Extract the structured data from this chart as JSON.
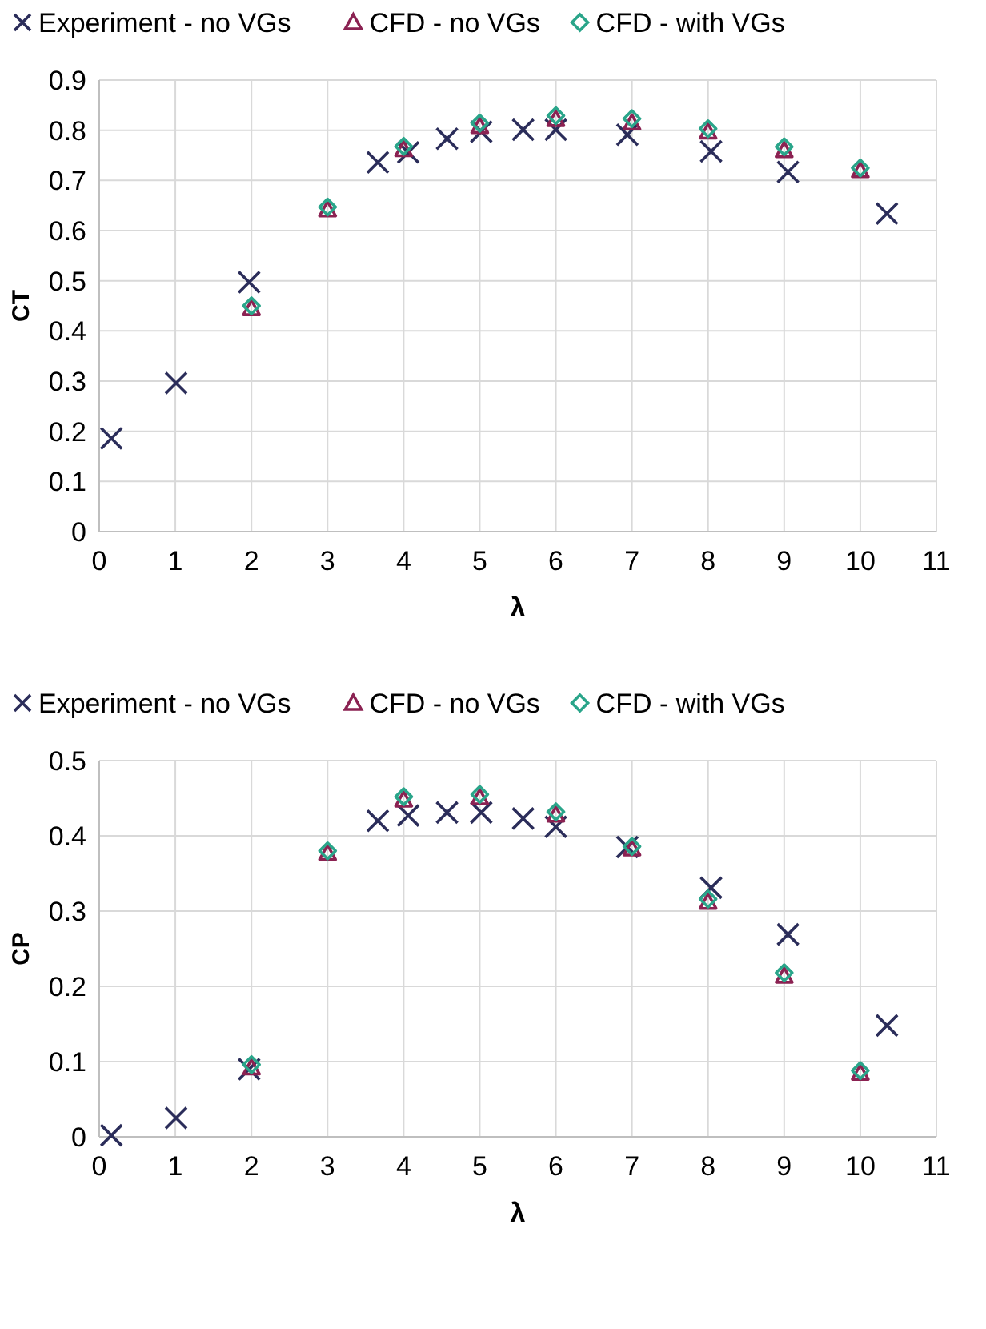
{
  "chart_data": [
    {
      "type": "scatter",
      "xlabel": "λ",
      "ylabel": "CT",
      "xlim": [
        0,
        11
      ],
      "xticks": [
        0,
        1,
        2,
        3,
        4,
        5,
        6,
        7,
        8,
        9,
        10,
        11
      ],
      "ylim": [
        0,
        0.9
      ],
      "yticks": [
        0,
        0.1,
        0.2,
        0.3,
        0.4,
        0.5,
        0.6,
        0.7,
        0.8,
        0.9
      ],
      "grid": true,
      "legend": "top",
      "series": [
        {
          "name": "Experiment - no VGs",
          "color": "#2b2d5a",
          "marker": "cross",
          "x": [
            0.16,
            1.01,
            1.97,
            3.66,
            4.06,
            4.57,
            5.02,
            5.57,
            6.0,
            6.94,
            8.04,
            9.05,
            10.35
          ],
          "values": [
            0.186,
            0.296,
            0.497,
            0.736,
            0.756,
            0.783,
            0.797,
            0.801,
            0.801,
            0.791,
            0.758,
            0.717,
            0.634
          ]
        },
        {
          "name": "CFD - no VGs",
          "color": "#8b2252",
          "marker": "triangle",
          "x": [
            2,
            3,
            4,
            5,
            6,
            7,
            8,
            9,
            10
          ],
          "values": [
            0.445,
            0.642,
            0.762,
            0.808,
            0.822,
            0.815,
            0.797,
            0.76,
            0.72
          ]
        },
        {
          "name": "CFD - with VGs",
          "color": "#2aa58a",
          "marker": "diamond",
          "x": [
            2,
            3,
            4,
            5,
            6,
            7,
            8,
            9,
            10
          ],
          "values": [
            0.45,
            0.647,
            0.768,
            0.814,
            0.829,
            0.823,
            0.803,
            0.767,
            0.725
          ]
        }
      ]
    },
    {
      "type": "scatter",
      "xlabel": "λ",
      "ylabel": "CP",
      "xlim": [
        0,
        11
      ],
      "xticks": [
        0,
        1,
        2,
        3,
        4,
        5,
        6,
        7,
        8,
        9,
        10,
        11
      ],
      "ylim": [
        0,
        0.5
      ],
      "yticks": [
        0,
        0.1,
        0.2,
        0.3,
        0.4,
        0.5
      ],
      "grid": true,
      "legend": "top",
      "series": [
        {
          "name": "Experiment - no VGs",
          "color": "#2b2d5a",
          "marker": "cross",
          "x": [
            0.16,
            1.01,
            1.97,
            3.66,
            4.06,
            4.57,
            5.02,
            5.57,
            6.0,
            6.94,
            8.04,
            9.05,
            10.35
          ],
          "values": [
            0.002,
            0.025,
            0.09,
            0.42,
            0.427,
            0.431,
            0.431,
            0.423,
            0.412,
            0.385,
            0.331,
            0.269,
            0.148
          ]
        },
        {
          "name": "CFD - no VGs",
          "color": "#8b2252",
          "marker": "triangle",
          "x": [
            2,
            3,
            4,
            5,
            6,
            7,
            8,
            9,
            10
          ],
          "values": [
            0.092,
            0.377,
            0.448,
            0.451,
            0.428,
            0.383,
            0.312,
            0.214,
            0.085
          ]
        },
        {
          "name": "CFD - with VGs",
          "color": "#2aa58a",
          "marker": "diamond",
          "x": [
            2,
            3,
            4,
            5,
            6,
            7,
            8,
            9,
            10
          ],
          "values": [
            0.096,
            0.38,
            0.452,
            0.455,
            0.432,
            0.386,
            0.316,
            0.218,
            0.088
          ]
        }
      ]
    }
  ]
}
